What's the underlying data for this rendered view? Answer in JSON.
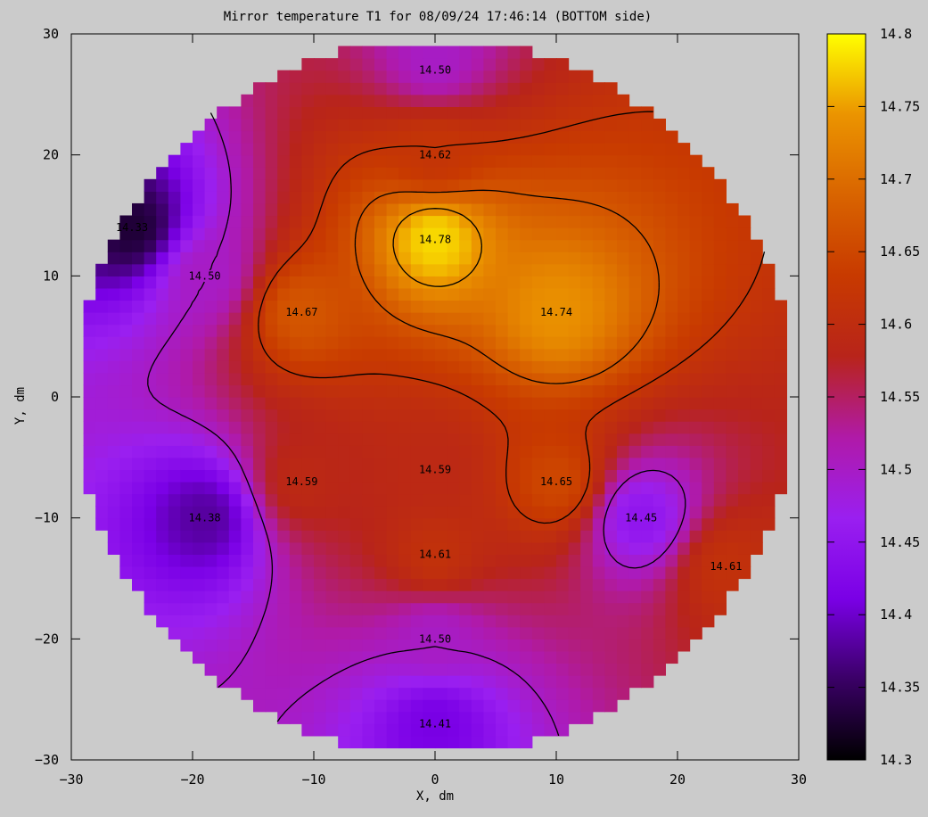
{
  "chart_data": {
    "type": "heatmap",
    "title": "Mirror temperature T1 for 08/09/24 17:46:14 (BOTTOM side)",
    "xlabel": "X, dm",
    "ylabel": "Y, dm",
    "xlim": [
      -30,
      30
    ],
    "ylim": [
      -30,
      30
    ],
    "xticks": [
      "−30",
      "−20",
      "−10",
      "0",
      "10",
      "20",
      "30"
    ],
    "yticks": [
      "30",
      "20",
      "10",
      "0",
      "−10",
      "−20",
      "−30"
    ],
    "colorbar": {
      "range": [
        14.3,
        14.8
      ],
      "ticks": [
        "14.8",
        "14.75",
        "14.7",
        "14.65",
        "14.6",
        "14.55",
        "14.5",
        "14.45",
        "14.4",
        "14.35",
        "14.3"
      ],
      "colors": [
        "#000000",
        "#3a0066",
        "#7a00e6",
        "#9a1ff0",
        "#b01aa8",
        "#b8241a",
        "#c83a00",
        "#d96400",
        "#eb9400",
        "#ffff00"
      ]
    },
    "mirror_radius": 29.5,
    "contour_levels": [
      14.5,
      14.62,
      14.67,
      14.74
    ],
    "field_points": [
      {
        "x": 0,
        "y": 13,
        "t": 14.78
      },
      {
        "x": 10,
        "y": 7,
        "t": 14.74
      },
      {
        "x": -11,
        "y": 7,
        "t": 14.67
      },
      {
        "x": 0,
        "y": 20,
        "t": 14.62
      },
      {
        "x": 0,
        "y": 28,
        "t": 14.5
      },
      {
        "x": -25,
        "y": 14,
        "t": 14.33
      },
      {
        "x": -19,
        "y": 10,
        "t": 14.5
      },
      {
        "x": -11,
        "y": -7,
        "t": 14.59
      },
      {
        "x": 0,
        "y": -6,
        "t": 14.59
      },
      {
        "x": 10,
        "y": -7,
        "t": 14.65
      },
      {
        "x": -19,
        "y": -10,
        "t": 14.38
      },
      {
        "x": 17,
        "y": -10,
        "t": 14.45
      },
      {
        "x": 0,
        "y": -13,
        "t": 14.61
      },
      {
        "x": 24,
        "y": -14,
        "t": 14.61
      },
      {
        "x": 0,
        "y": -20,
        "t": 14.5
      },
      {
        "x": 0,
        "y": -27,
        "t": 14.41
      }
    ],
    "labels": [
      {
        "x": 0,
        "y": 27,
        "text": "14.50"
      },
      {
        "x": 0,
        "y": 20,
        "text": "14.62"
      },
      {
        "x": 0,
        "y": 13,
        "text": "14.78"
      },
      {
        "x": -25,
        "y": 14,
        "text": "14.33"
      },
      {
        "x": -19,
        "y": 10,
        "text": "14.50"
      },
      {
        "x": -11,
        "y": 7,
        "text": "14.67"
      },
      {
        "x": 10,
        "y": 7,
        "text": "14.74"
      },
      {
        "x": -11,
        "y": -7,
        "text": "14.59"
      },
      {
        "x": 0,
        "y": -6,
        "text": "14.59"
      },
      {
        "x": 10,
        "y": -7,
        "text": "14.65"
      },
      {
        "x": -19,
        "y": -10,
        "text": "14.38"
      },
      {
        "x": 17,
        "y": -10,
        "text": "14.45"
      },
      {
        "x": 0,
        "y": -13,
        "text": "14.61"
      },
      {
        "x": 24,
        "y": -14,
        "text": "14.61"
      },
      {
        "x": 0,
        "y": -20,
        "text": "14.50"
      },
      {
        "x": 0,
        "y": -27,
        "text": "14.41"
      }
    ]
  }
}
